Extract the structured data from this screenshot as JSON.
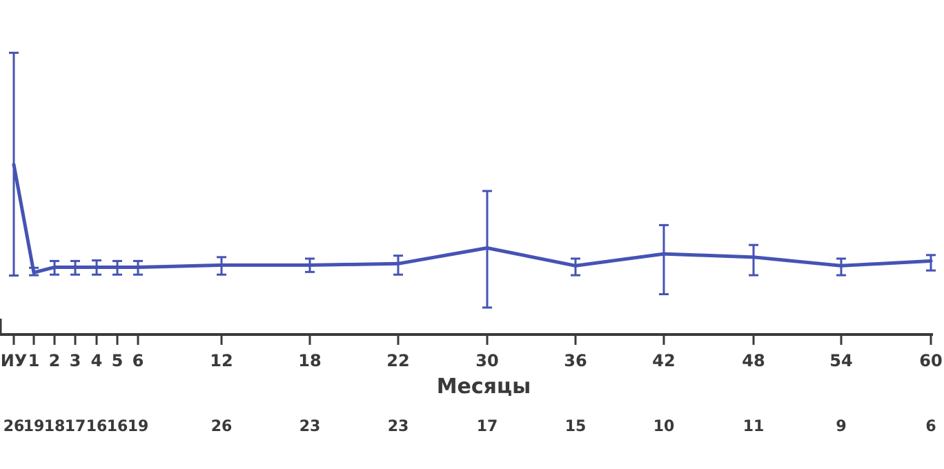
{
  "chart_data": {
    "type": "line",
    "xlabel": "Месяцы",
    "ylabel": "",
    "ylim": [
      0,
      100
    ],
    "grid": false,
    "categories": [
      "ИУ",
      "1",
      "2",
      "3",
      "4",
      "5",
      "6",
      "12",
      "18",
      "22",
      "30",
      "36",
      "42",
      "48",
      "54",
      "60"
    ],
    "series": [
      {
        "values": [
          53.8,
          17.4,
          19.2,
          19.2,
          19.2,
          19.2,
          19.2,
          19.9,
          19.9,
          20.4,
          25.7,
          19.7,
          23.7,
          22.6,
          19.7,
          21.3
        ],
        "error_low": [
          16.4,
          16.5,
          16.7,
          16.7,
          16.7,
          16.7,
          16.7,
          16.7,
          17.6,
          16.7,
          5.6,
          16.5,
          10.1,
          16.5,
          16.5,
          18.1
        ],
        "error_high": [
          91.5,
          19.0,
          21.3,
          21.3,
          21.5,
          21.3,
          21.3,
          22.6,
          22.1,
          23.1,
          44.9,
          22.1,
          33.4,
          26.7,
          22.1,
          23.3
        ]
      }
    ],
    "counts": [
      "26",
      "19",
      "18",
      "17",
      "16",
      "16",
      "19",
      "26",
      "23",
      "23",
      "17",
      "15",
      "10",
      "11",
      "9",
      "6"
    ],
    "colors": {
      "series": "#4553b4",
      "axis": "#3a3a3a",
      "text": "#3a3a3a"
    }
  }
}
